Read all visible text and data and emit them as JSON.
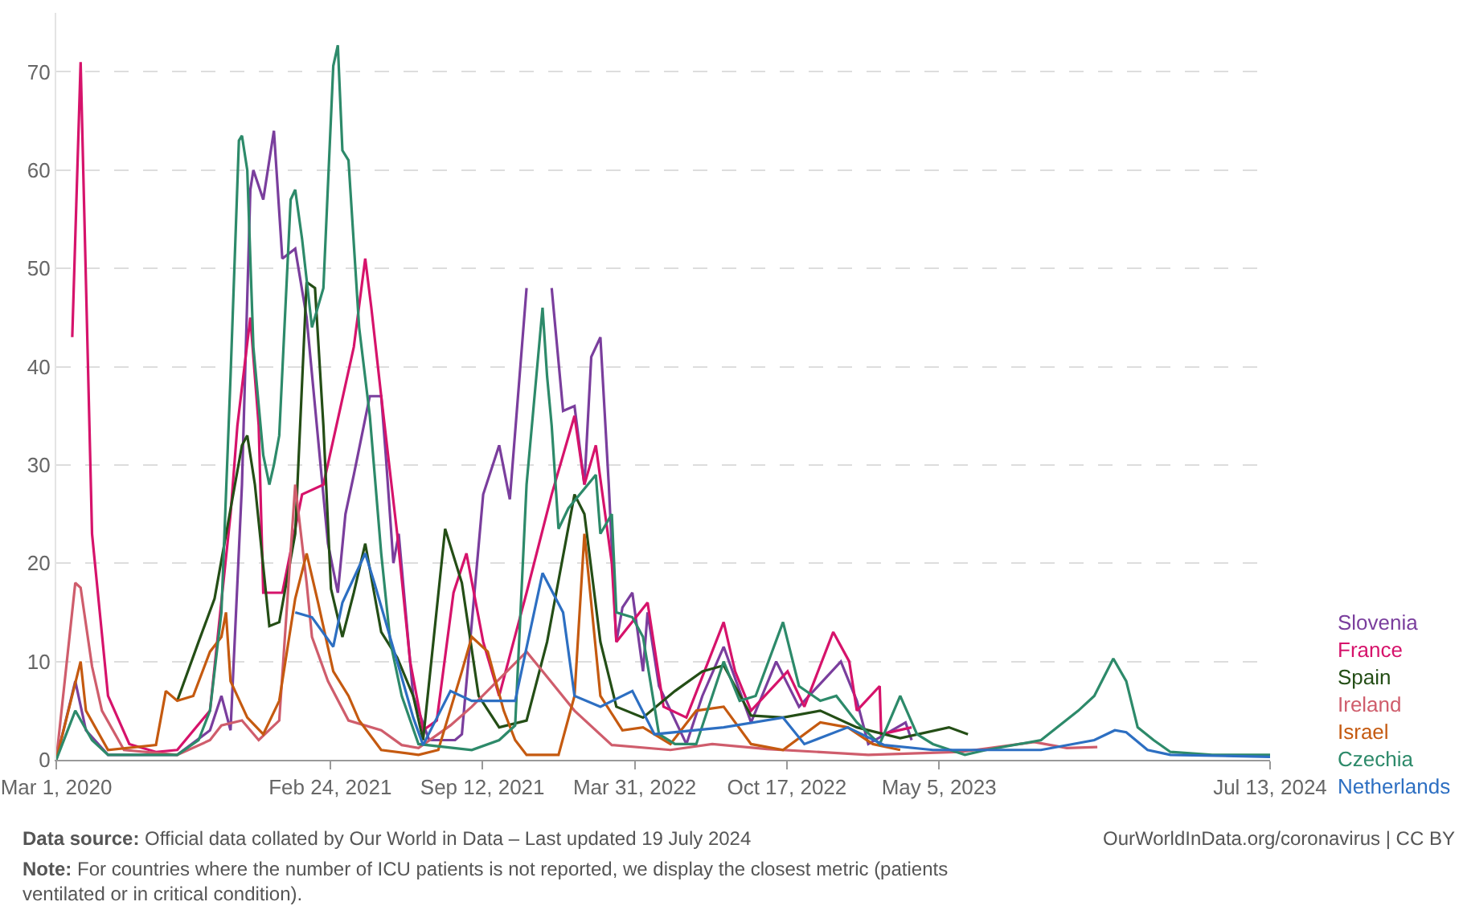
{
  "chart_data": {
    "type": "line",
    "grid": "y",
    "xlim": [
      "2020-03-01",
      "2024-07-13"
    ],
    "xticks": [
      {
        "value": "2020-03-01",
        "label": "Mar 1, 2020"
      },
      {
        "value": "2021-02-24",
        "label": "Feb 24, 2021"
      },
      {
        "value": "2021-09-12",
        "label": "Sep 12, 2021"
      },
      {
        "value": "2022-03-31",
        "label": "Mar 31, 2022"
      },
      {
        "value": "2022-10-17",
        "label": "Oct 17, 2022"
      },
      {
        "value": "2023-05-05",
        "label": "May 5, 2023"
      },
      {
        "value": "2024-07-13",
        "label": "Jul 13, 2024"
      }
    ],
    "ylim": [
      0,
      76
    ],
    "yticks": [
      0,
      10,
      20,
      30,
      40,
      50,
      60,
      70
    ],
    "series": [
      {
        "name": "Slovenia",
        "color": "#7a3e9d",
        "x": [
          "2020-03-01",
          "2020-03-26",
          "2020-04-09",
          "2020-05-08",
          "2020-08-07",
          "2020-09-19",
          "2020-10-04",
          "2020-10-16",
          "2020-10-31",
          "2020-11-11",
          "2020-11-15",
          "2020-11-28",
          "2020-12-12",
          "2020-12-23",
          "2021-01-09",
          "2021-01-24",
          "2021-02-21",
          "2021-03-06",
          "2021-03-16",
          "2021-03-27",
          "2021-04-17",
          "2021-05-02",
          "2021-05-08",
          "2021-05-18",
          "2021-05-25",
          "2021-06-13",
          "2021-07-04",
          "2021-08-07",
          "2021-08-16",
          "2021-09-13",
          "2021-10-04",
          "2021-10-18",
          "2021-11-09",
          "2021-11-22",
          "2021-12-02",
          "2021-12-12",
          "2021-12-27",
          "2022-01-11",
          "2022-01-24",
          "2022-02-02",
          "2022-02-14",
          "2022-02-25",
          "2022-03-07",
          "2022-03-15",
          "2022-03-28",
          "2022-04-11",
          "2022-04-17",
          "2022-05-02",
          "2022-06-07",
          "2022-06-28",
          "2022-07-26",
          "2022-08-31",
          "2022-10-03",
          "2022-11-02",
          "2022-12-27",
          "2023-01-17",
          "2023-02-01",
          "2023-03-22",
          "2023-03-30"
        ],
        "values": [
          0,
          8,
          3,
          0.5,
          0.5,
          3,
          6.5,
          3,
          28,
          58,
          60,
          57,
          64,
          51,
          52,
          45,
          22,
          17,
          25,
          29,
          37,
          37,
          31,
          20,
          23,
          6.5,
          2,
          2,
          2.6,
          27,
          32,
          26.5,
          48,
          null,
          null,
          48,
          35.5,
          36,
          28,
          41,
          43,
          28,
          12,
          15.5,
          17,
          9,
          15,
          7.5,
          1.6,
          6.5,
          11.5,
          3.8,
          10,
          5.4,
          10,
          6,
          1.6,
          3.8,
          2
        ]
      },
      {
        "name": "France",
        "color": "#d6136b",
        "x": [
          "2020-03-22",
          "2020-04-02",
          "2020-04-17",
          "2020-05-08",
          "2020-06-05",
          "2020-07-10",
          "2020-08-07",
          "2020-09-19",
          "2020-10-16",
          "2020-10-25",
          "2020-11-11",
          "2020-11-22",
          "2020-11-28",
          "2020-12-23",
          "2021-01-18",
          "2021-02-15",
          "2021-03-27",
          "2021-04-11",
          "2021-04-19",
          "2021-05-02",
          "2021-05-23",
          "2021-06-09",
          "2021-06-26",
          "2021-07-14",
          "2021-08-05",
          "2021-08-22",
          "2021-09-13",
          "2021-10-04",
          "2021-11-09",
          "2021-12-12",
          "2022-01-11",
          "2022-01-24",
          "2022-02-08",
          "2022-03-01",
          "2022-03-07",
          "2022-04-17",
          "2022-05-08",
          "2022-06-07",
          "2022-07-26",
          "2022-08-10",
          "2022-08-31",
          "2022-10-18",
          "2022-11-09",
          "2022-12-17",
          "2023-01-07",
          "2023-01-17",
          "2023-02-16",
          "2023-02-18",
          "2023-03-30"
        ],
        "values": [
          43,
          71,
          23,
          6.5,
          1.6,
          0.8,
          1,
          5,
          25,
          34,
          45,
          34,
          17,
          17,
          27,
          28,
          42,
          51,
          46,
          37,
          23,
          10,
          3,
          4,
          17,
          21,
          12,
          6.5,
          17,
          27,
          35,
          28,
          32,
          20,
          12,
          16,
          5.4,
          4.3,
          14,
          9,
          5,
          9,
          5.4,
          13,
          10,
          5,
          7.5,
          2.6,
          3.3
        ]
      },
      {
        "name": "Spain",
        "color": "#244e16",
        "x": [
          "2020-08-07",
          "2020-09-04",
          "2020-09-25",
          "2020-10-31",
          "2020-11-07",
          "2020-11-17",
          "2020-12-06",
          "2020-12-19",
          "2021-01-09",
          "2021-01-24",
          "2021-02-04",
          "2021-02-15",
          "2021-02-25",
          "2021-03-12",
          "2021-03-27",
          "2021-04-11",
          "2021-05-02",
          "2021-05-23",
          "2021-06-13",
          "2021-06-26",
          "2021-07-25",
          "2021-08-16",
          "2021-09-07",
          "2021-10-04",
          "2021-11-09",
          "2021-12-06",
          "2022-01-11",
          "2022-01-24",
          "2022-02-14",
          "2022-03-07",
          "2022-04-11",
          "2022-05-23",
          "2022-06-28",
          "2022-07-26",
          "2022-08-31",
          "2022-10-12",
          "2022-11-30",
          "2023-01-17",
          "2023-03-15",
          "2023-05-18",
          "2023-06-12"
        ],
        "values": [
          6,
          12,
          16.4,
          32,
          33,
          28,
          13.6,
          14,
          23,
          48.6,
          48,
          34,
          17.4,
          12.5,
          17,
          22,
          13,
          10.4,
          6.5,
          2,
          23.5,
          18,
          6.5,
          3.3,
          4,
          12,
          27,
          25,
          12,
          5.4,
          4.3,
          7,
          9,
          9.6,
          4.5,
          4.3,
          5,
          3.3,
          2.2,
          3.3,
          2.6
        ]
      },
      {
        "name": "Ireland",
        "color": "#cf5d6c",
        "x": [
          "2020-03-01",
          "2020-03-26",
          "2020-04-02",
          "2020-04-17",
          "2020-04-30",
          "2020-05-29",
          "2020-08-07",
          "2020-09-19",
          "2020-10-04",
          "2020-10-31",
          "2020-11-22",
          "2020-12-19",
          "2021-01-09",
          "2021-01-24",
          "2021-01-31",
          "2021-02-21",
          "2021-03-20",
          "2021-05-02",
          "2021-05-29",
          "2021-06-20",
          "2021-08-01",
          "2021-08-29",
          "2021-11-09",
          "2021-11-30",
          "2022-01-11",
          "2022-03-01",
          "2022-05-17",
          "2022-07-11",
          "2022-09-21",
          "2023-02-01",
          "2023-06-02",
          "2023-09-07",
          "2023-10-20",
          "2023-11-29"
        ],
        "values": [
          0,
          18,
          17.5,
          9.5,
          5,
          1,
          0.5,
          2,
          3.5,
          4,
          2,
          4,
          28,
          18,
          12.5,
          8,
          4,
          3,
          1.5,
          1.2,
          3.5,
          5.4,
          11,
          9,
          5,
          1.5,
          1,
          1.6,
          1.1,
          0.5,
          0.8,
          1.8,
          1.2,
          1.3
        ]
      },
      {
        "name": "Israel",
        "color": "#c55a10",
        "x": [
          "2020-03-01",
          "2020-04-02",
          "2020-04-09",
          "2020-05-08",
          "2020-07-10",
          "2020-07-23",
          "2020-08-07",
          "2020-08-28",
          "2020-09-19",
          "2020-10-04",
          "2020-10-10",
          "2020-10-16",
          "2020-11-07",
          "2020-11-28",
          "2020-12-19",
          "2021-01-09",
          "2021-01-24",
          "2021-02-08",
          "2021-02-28",
          "2021-03-20",
          "2021-04-03",
          "2021-05-02",
          "2021-06-20",
          "2021-07-16",
          "2021-08-16",
          "2021-08-29",
          "2021-09-19",
          "2021-10-10",
          "2021-10-25",
          "2021-11-09",
          "2021-12-21",
          "2022-01-11",
          "2022-01-24",
          "2022-02-14",
          "2022-03-15",
          "2022-04-11",
          "2022-05-17",
          "2022-06-20",
          "2022-07-26",
          "2022-08-31",
          "2022-10-12",
          "2022-11-30",
          "2023-01-05",
          "2023-02-07",
          "2023-03-15"
        ],
        "values": [
          0,
          10,
          5,
          1,
          1.5,
          7,
          6,
          6.5,
          11,
          12.5,
          15,
          8,
          4.3,
          2.6,
          6,
          16.4,
          21,
          16,
          9,
          6.5,
          4,
          1,
          0.5,
          1,
          9,
          12.5,
          11,
          5,
          2,
          0.5,
          0.5,
          6.5,
          23,
          6.5,
          3,
          3.3,
          1.6,
          5,
          5.4,
          1.6,
          1,
          3.8,
          3.3,
          1.6,
          1
        ]
      },
      {
        "name": "Czechia",
        "color": "#2d8a6a",
        "x": [
          "2020-03-01",
          "2020-03-26",
          "2020-04-17",
          "2020-05-08",
          "2020-08-07",
          "2020-09-04",
          "2020-09-19",
          "2020-10-04",
          "2020-10-16",
          "2020-10-27",
          "2020-10-31",
          "2020-11-07",
          "2020-11-15",
          "2020-11-28",
          "2020-12-06",
          "2020-12-12",
          "2020-12-19",
          "2021-01-03",
          "2021-01-09",
          "2021-01-18",
          "2021-01-31",
          "2021-02-15",
          "2021-02-28",
          "2021-03-06",
          "2021-03-12",
          "2021-03-20",
          "2021-04-03",
          "2021-04-17",
          "2021-05-02",
          "2021-05-14",
          "2021-05-29",
          "2021-06-20",
          "2021-08-29",
          "2021-10-04",
          "2021-10-25",
          "2021-11-09",
          "2021-11-30",
          "2021-12-06",
          "2021-12-12",
          "2021-12-21",
          "2022-01-03",
          "2022-02-08",
          "2022-02-14",
          "2022-03-01",
          "2022-03-07",
          "2022-03-28",
          "2022-04-11",
          "2022-05-02",
          "2022-05-23",
          "2022-06-20",
          "2022-07-26",
          "2022-08-16",
          "2022-09-06",
          "2022-10-12",
          "2022-11-02",
          "2022-11-30",
          "2022-12-21",
          "2023-01-17",
          "2023-02-16",
          "2023-03-15",
          "2023-04-06",
          "2023-04-27",
          "2023-06-08",
          "2023-07-06",
          "2023-09-16",
          "2023-11-04",
          "2023-11-25",
          "2023-12-20",
          "2024-01-06",
          "2024-01-21",
          "2024-02-11",
          "2024-03-04",
          "2024-04-28",
          "2024-07-13"
        ],
        "values": [
          0,
          5,
          2,
          0.5,
          0.5,
          2,
          5,
          15,
          39,
          63,
          63.5,
          60,
          42,
          31,
          28,
          30,
          33,
          57,
          58,
          53,
          44,
          48,
          70.6,
          72.7,
          62,
          61,
          44,
          35,
          21,
          12,
          6.5,
          1.6,
          1,
          2,
          3.5,
          28,
          46,
          39,
          34,
          23.5,
          25.6,
          29,
          23,
          25,
          15,
          14.5,
          12.5,
          2.6,
          1.6,
          1.6,
          10,
          6,
          6.5,
          14,
          7.5,
          6,
          6.5,
          3.8,
          1.6,
          6.5,
          2.6,
          1.6,
          0.5,
          1,
          2,
          5,
          6.5,
          10.3,
          8,
          3.3,
          2,
          0.8,
          0.5,
          0.5
        ]
      },
      {
        "name": "Netherlands",
        "color": "#2d6fc2",
        "x": [
          "2021-01-09",
          "2021-01-31",
          "2021-02-28",
          "2021-03-12",
          "2021-04-11",
          "2021-04-23",
          "2021-05-23",
          "2021-06-13",
          "2021-06-26",
          "2021-08-01",
          "2021-08-29",
          "2021-10-25",
          "2021-11-30",
          "2021-12-27",
          "2022-01-11",
          "2022-02-14",
          "2022-03-28",
          "2022-04-26",
          "2022-07-26",
          "2022-10-12",
          "2022-11-09",
          "2023-01-05",
          "2023-02-22",
          "2023-04-27",
          "2023-09-16",
          "2023-11-25",
          "2023-12-22",
          "2024-01-06",
          "2024-02-03",
          "2024-03-04",
          "2024-07-13"
        ],
        "values": [
          15,
          14.5,
          11.5,
          16,
          21,
          18,
          10,
          4.3,
          1.5,
          7,
          6,
          6,
          19,
          15,
          6.5,
          5.4,
          7,
          2.6,
          3.3,
          4.3,
          1.6,
          3.3,
          1.5,
          1,
          1,
          2,
          3,
          2.8,
          1,
          0.5,
          0.3
        ]
      }
    ],
    "annotations": [
      "Data source: Official data collated by Our World in Data – Last updated 19 July 2024",
      "OurWorldInData.org/coronavirus | CC BY",
      "Note: For countries where the number of ICU patients is not reported, we display the closest metric (patients ventilated or in critical condition)."
    ]
  }
}
